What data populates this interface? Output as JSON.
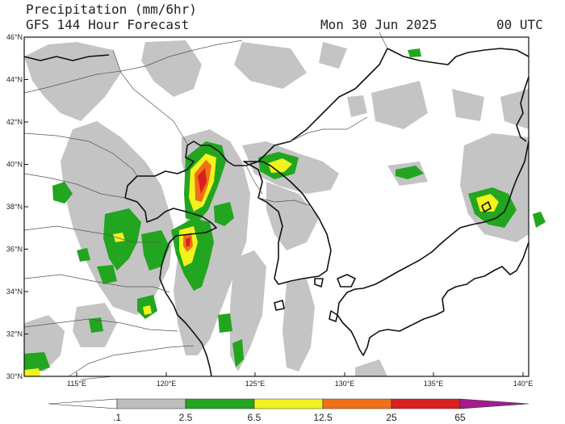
{
  "header": {
    "line1": "Precipitation (mm/6hr)",
    "line2": "GFS 144 Hour Forecast",
    "date": "Mon 30 Jun 2025",
    "time": "00 UTC"
  },
  "lat_ticks": [
    "46°N",
    "44°N",
    "42°N",
    "40°N",
    "38°N",
    "36°N",
    "34°N",
    "32°N",
    "30°N"
  ],
  "lon_ticks": [
    "115°E",
    "120°E",
    "125°E",
    "130°E",
    "135°E",
    "140°E"
  ],
  "legend": {
    "labels": [
      ".1",
      "2.5",
      "6.5",
      "12.5",
      "25",
      "65"
    ],
    "colors": [
      "#ffffff",
      "#bdbdbd",
      "#22a51f",
      "#f2f21c",
      "#f07017",
      "#d92020",
      "#a51b8c"
    ]
  }
}
